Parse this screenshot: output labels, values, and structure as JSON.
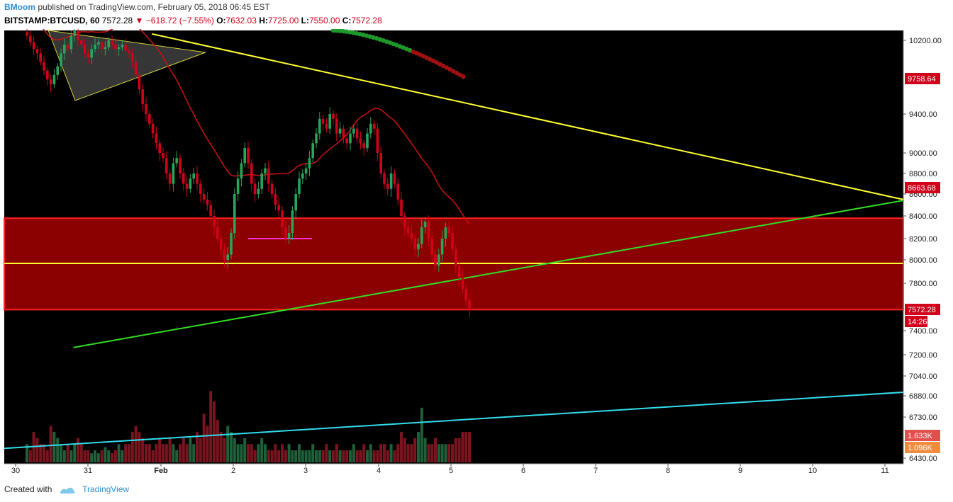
{
  "header": {
    "author": "BMoom",
    "published_text": "published on TradingView.com, February 05, 2018 06:45 EST",
    "symbol": "BITSTAMP:BTCUSD, 60",
    "last": "7572.28",
    "arrow": "▼",
    "change": "−618.72 (−7.55%)",
    "o_label": "O:",
    "o_value": "7632.03",
    "h_label": "H:",
    "h_value": "7725.00",
    "l_label": "L:",
    "l_value": "7550.00",
    "c_label": "C:",
    "c_value": "7572.28"
  },
  "footer": {
    "created_with": "Created with",
    "brand": "TradingView"
  },
  "colors": {
    "background": "#000000",
    "up": "#26a65b",
    "down": "#d0021b",
    "trend_yellow": "#ffff33",
    "trend_green": "#33dd22",
    "trend_cyan": "#33ddee",
    "zone": "#8b0000",
    "ma_red": "#cc1111",
    "ma_green": "#22bb22",
    "magenta": "#ff33cc"
  },
  "chart_data": {
    "type": "candlestick",
    "price_axis_labels": [
      "10200.00",
      "9400.00",
      "9000.00",
      "8800.00",
      "8600.00",
      "8400.00",
      "8200.00",
      "8000.00",
      "7800.00",
      "7400.00",
      "7200.00",
      "7040.00",
      "6880.00",
      "6730.00",
      "6430.00"
    ],
    "price_tags": [
      {
        "value": "9758.64",
        "color": "#d0021b"
      },
      {
        "value": "8663.68",
        "color": "#d0021b"
      },
      {
        "value": "7572.28",
        "color": "#d0021b"
      },
      {
        "value": "14:26",
        "color": "#d0021b"
      },
      {
        "value": "1.633K",
        "color": "#e0504c"
      },
      {
        "value": "1.096K",
        "color": "#f08c3c"
      }
    ],
    "time_labels": [
      "30",
      "31",
      "Feb",
      "2",
      "3",
      "4",
      "5",
      "6",
      "7",
      "8",
      "9",
      "10",
      "11"
    ],
    "zone": {
      "top": 8380,
      "bottom": 7570,
      "mid_line": 7970
    },
    "resistance_line": {
      "from": {
        "day": 0.88,
        "price": 10270
      },
      "to": {
        "day": 11.25,
        "price": 8545
      }
    },
    "support_line": {
      "from": {
        "day": -0.2,
        "price": 7260
      },
      "to": {
        "day": 11.25,
        "price": 8545
      }
    },
    "volume_trend_line": {
      "from_volume_level": 0.18,
      "to_volume_level": 0.9
    },
    "candles_close": [
      10250,
      10180,
      10100,
      10050,
      9950,
      9850,
      9750,
      9700,
      9800,
      9900,
      10050,
      10150,
      10100,
      10250,
      10300,
      10200,
      10150,
      10050,
      10000,
      10100,
      10150,
      10180,
      10100,
      10120,
      10200,
      10150,
      10100,
      10120,
      10150,
      10080,
      10050,
      9950,
      9800,
      9650,
      9500,
      9400,
      9300,
      9200,
      9100,
      9000,
      8950,
      8800,
      8700,
      8900,
      8950,
      8800,
      8700,
      8650,
      8750,
      8800,
      8700,
      8600,
      8550,
      8500,
      8400,
      8300,
      8200,
      8100,
      8000,
      8050,
      8250,
      8600,
      8750,
      8900,
      9050,
      8900,
      8700,
      8600,
      8650,
      8800,
      8850,
      8700,
      8600,
      8500,
      8450,
      8300,
      8200,
      8250,
      8450,
      8600,
      8750,
      8800,
      8850,
      8950,
      9100,
      9200,
      9350,
      9300,
      9250,
      9400,
      9350,
      9200,
      9250,
      9150,
      9100,
      9200,
      9250,
      9150,
      9100,
      9050,
      9200,
      9300,
      9250,
      9000,
      8800,
      8700,
      8650,
      8800,
      8700,
      8550,
      8400,
      8300,
      8250,
      8200,
      8100,
      8150,
      8300,
      8350,
      8200,
      8050,
      7950,
      8050,
      8200,
      8300,
      8250,
      8100,
      7950,
      7850,
      7750,
      7650,
      7572
    ],
    "volume_levels": [
      0.3,
      0.2,
      0.5,
      0.4,
      0.3,
      0.3,
      0.2,
      0.6,
      0.5,
      0.4,
      0.3,
      0.2,
      0.3,
      0.2,
      0.3,
      0.4,
      0.3,
      0.2,
      0.2,
      0.15,
      0.2,
      0.15,
      0.2,
      0.25,
      0.2,
      0.15,
      0.2,
      0.3,
      0.2,
      0.3,
      0.3,
      0.5,
      0.6,
      0.5,
      0.4,
      0.3,
      0.3,
      0.2,
      0.3,
      0.4,
      0.3,
      0.3,
      0.4,
      0.3,
      0.2,
      0.3,
      0.4,
      0.3,
      0.4,
      0.3,
      0.5,
      0.4,
      0.8,
      0.6,
      1.5,
      1.0,
      0.7,
      0.5,
      0.4,
      0.6,
      0.5,
      0.4,
      0.3,
      0.3,
      0.4,
      0.3,
      0.3,
      0.2,
      0.3,
      0.4,
      0.3,
      0.2,
      0.2,
      0.3,
      0.2,
      0.3,
      0.2,
      0.3,
      0.2,
      0.2,
      0.3,
      0.2,
      0.2,
      0.2,
      0.3,
      0.2,
      0.2,
      0.2,
      0.3,
      0.2,
      0.2,
      0.3,
      0.2,
      0.2,
      0.2,
      0.2,
      0.3,
      0.2,
      0.2,
      0.3,
      0.2,
      0.3,
      0.2,
      0.2,
      0.3,
      0.3,
      0.2,
      0.3,
      0.2,
      0.3,
      0.5,
      0.4,
      0.3,
      0.3,
      0.4,
      0.5,
      0.9,
      0.4,
      0.3,
      0.3,
      0.4,
      0.3,
      0.3,
      0.3,
      0.3,
      0.3,
      0.4,
      0.4,
      0.5,
      0.5,
      0.5
    ]
  }
}
